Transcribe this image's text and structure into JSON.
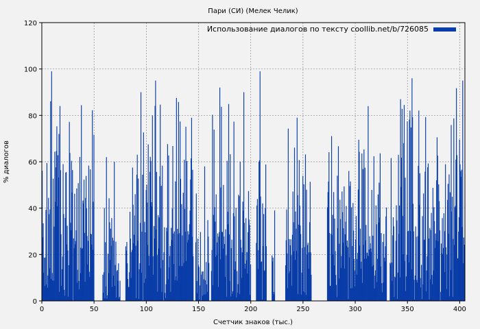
{
  "chart_data": {
    "type": "bar",
    "title": "Пари (СИ) (Мелек Челик)",
    "xlabel": "Счетчик знаков (тыс.)",
    "ylabel": "% диалогов",
    "xlim": [
      0,
      405
    ],
    "ylim": [
      0,
      120
    ],
    "xticks": [
      0,
      50,
      100,
      150,
      200,
      250,
      300,
      350,
      400
    ],
    "yticks": [
      0,
      20,
      40,
      60,
      80,
      100,
      120
    ],
    "grid": true,
    "legend_position": "top-right",
    "series": [
      {
        "name": "Использование диалогов по тексту coollib.net/b/726085",
        "color": "#0a3da8",
        "bin_width": 0.5,
        "segments": [
          {
            "from": 0,
            "to": 50,
            "peak": 99,
            "typical_max": 72
          },
          {
            "from": 58,
            "to": 68,
            "peak": 62,
            "typical_max": 40
          },
          {
            "from": 68,
            "to": 75,
            "peak": 60,
            "typical_max": 35
          },
          {
            "from": 80,
            "to": 98,
            "peak": 90,
            "typical_max": 60
          },
          {
            "from": 98,
            "to": 145,
            "peak": 95,
            "typical_max": 70
          },
          {
            "from": 147,
            "to": 160,
            "peak": 58,
            "typical_max": 40
          },
          {
            "from": 162,
            "to": 185,
            "peak": 92,
            "typical_max": 70
          },
          {
            "from": 185,
            "to": 200,
            "peak": 90,
            "typical_max": 55
          },
          {
            "from": 205,
            "to": 215,
            "peak": 99,
            "typical_max": 60
          },
          {
            "from": 220,
            "to": 223,
            "peak": 39,
            "typical_max": 25
          },
          {
            "from": 233,
            "to": 258,
            "peak": 79,
            "typical_max": 60
          },
          {
            "from": 273,
            "to": 330,
            "peak": 84,
            "typical_max": 58
          },
          {
            "from": 333,
            "to": 395,
            "peak": 96,
            "typical_max": 70
          },
          {
            "from": 395,
            "to": 405,
            "peak": 95,
            "typical_max": 75
          }
        ]
      }
    ]
  }
}
